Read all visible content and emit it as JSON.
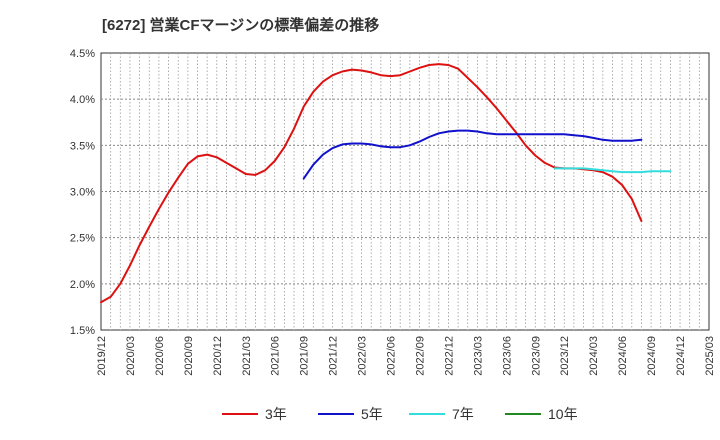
{
  "chart_data": {
    "type": "line",
    "title": "[6272]  営業CFマージンの標準偏差の推移",
    "xlabel": "",
    "ylabel": "",
    "ylim": [
      1.5,
      4.5
    ],
    "y_ticks": [
      1.5,
      2.0,
      2.5,
      3.0,
      3.5,
      4.0,
      4.5
    ],
    "y_tick_labels": [
      "1.5%",
      "2.0%",
      "2.5%",
      "3.0%",
      "3.5%",
      "4.0%",
      "4.5%"
    ],
    "x_tick_labels": [
      "2019/12",
      "2020/03",
      "2020/06",
      "2020/09",
      "2020/12",
      "2021/03",
      "2021/06",
      "2021/09",
      "2021/12",
      "2022/03",
      "2022/06",
      "2022/09",
      "2022/12",
      "2023/03",
      "2023/06",
      "2023/09",
      "2023/12",
      "2024/03",
      "2024/06",
      "2024/09",
      "2024/12",
      "2025/03"
    ],
    "grid": true,
    "legend_position": "bottom",
    "series": [
      {
        "name": "3年",
        "color": "#dd1111",
        "start_index": 0,
        "values": [
          1.8,
          1.86,
          2.0,
          2.2,
          2.42,
          2.62,
          2.81,
          2.99,
          3.15,
          3.3,
          3.38,
          3.4,
          3.37,
          3.31,
          3.25,
          3.19,
          3.18,
          3.23,
          3.33,
          3.48,
          3.68,
          3.92,
          4.08,
          4.19,
          4.26,
          4.3,
          4.32,
          4.31,
          4.29,
          4.26,
          4.25,
          4.26,
          4.3,
          4.34,
          4.37,
          4.38,
          4.37,
          4.33,
          4.23,
          4.13,
          4.02,
          3.9,
          3.77,
          3.64,
          3.5,
          3.39,
          3.31,
          3.26,
          3.25,
          3.25,
          3.24,
          3.23,
          3.21,
          3.16,
          3.07,
          2.92,
          2.68
        ]
      },
      {
        "name": "5年",
        "color": "#1111cc",
        "start_index": 21,
        "values": [
          3.14,
          3.29,
          3.4,
          3.47,
          3.51,
          3.52,
          3.52,
          3.51,
          3.49,
          3.48,
          3.48,
          3.5,
          3.54,
          3.59,
          3.63,
          3.65,
          3.66,
          3.66,
          3.65,
          3.63,
          3.62,
          3.62,
          3.62,
          3.62,
          3.62,
          3.62,
          3.62,
          3.62,
          3.61,
          3.6,
          3.58,
          3.56,
          3.55,
          3.55,
          3.55,
          3.56
        ]
      },
      {
        "name": "7年",
        "color": "#33dddd",
        "start_index": 47,
        "values": [
          3.25,
          3.25,
          3.25,
          3.25,
          3.24,
          3.23,
          3.22,
          3.21,
          3.21,
          3.21,
          3.22,
          3.22,
          3.22
        ]
      },
      {
        "name": "10年",
        "color": "#228822",
        "start_index": 0,
        "values": []
      }
    ]
  }
}
